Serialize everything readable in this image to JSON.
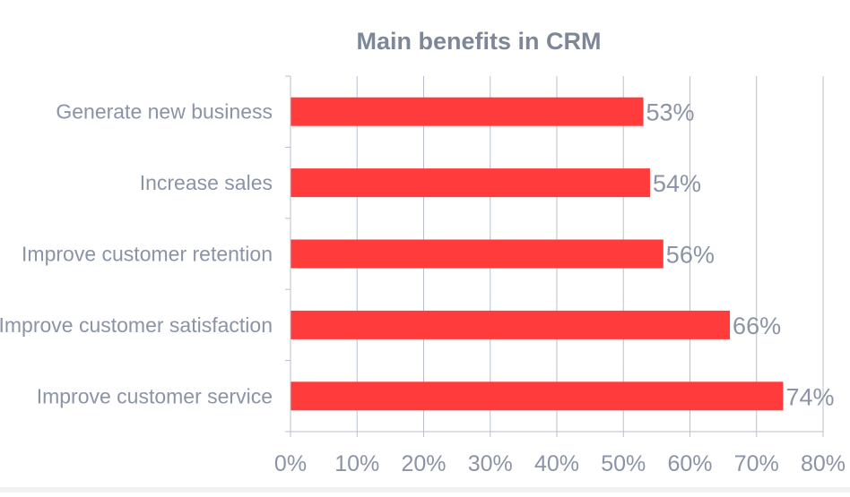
{
  "chart_data": {
    "type": "bar",
    "orientation": "horizontal",
    "title": "Main benefits in CRM",
    "categories": [
      "Generate new business",
      "Increase sales",
      "Improve customer retention",
      "Improve customer satisfaction",
      "Improve customer service"
    ],
    "values": [
      53,
      54,
      56,
      66,
      74
    ],
    "value_labels": [
      "53%",
      "54%",
      "56%",
      "66%",
      "74%"
    ],
    "x_ticks": [
      "0%",
      "10%",
      "20%",
      "30%",
      "40%",
      "50%",
      "60%",
      "70%",
      "80%"
    ],
    "xlim": [
      0,
      80
    ],
    "grid": true,
    "legend": "none",
    "colors": {
      "bar": "#ff3b3b",
      "text": "#8a94a6",
      "title": "#7d8798",
      "grid": "#b9c0cc"
    }
  }
}
